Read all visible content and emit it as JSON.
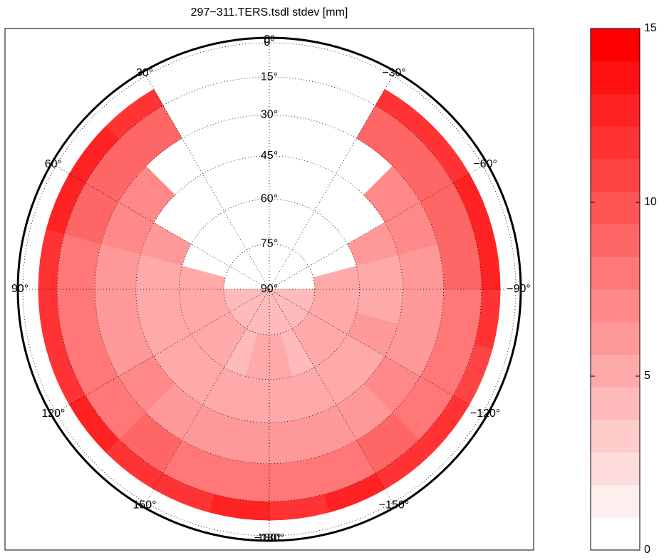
{
  "chart_data": {
    "type": "polar-heatmap",
    "title": "297−311.TERS.tsdl  stdev [mm]",
    "azimuth_edges": [
      -180,
      -165,
      -150,
      -135,
      -120,
      -105,
      -90,
      -75,
      -60,
      -45,
      -30,
      -15,
      0,
      15,
      30,
      45,
      60,
      75,
      90,
      105,
      120,
      135,
      150,
      165,
      180
    ],
    "elevation_edges": [
      7,
      15,
      30,
      45,
      60,
      75,
      90
    ],
    "values": [
      [
        12,
        13,
        12,
        12,
        11,
        12,
        13,
        13,
        12,
        12,
        null,
        null,
        null,
        null,
        12,
        13,
        13,
        12,
        12,
        12,
        13,
        12,
        12,
        13
      ],
      [
        8,
        8,
        9,
        8,
        8,
        8,
        9,
        9,
        9,
        9,
        null,
        null,
        null,
        null,
        9,
        9,
        9,
        8,
        8,
        8,
        8,
        9,
        8,
        8
      ],
      [
        6,
        6,
        6,
        7,
        6,
        6,
        6,
        7,
        7,
        null,
        null,
        null,
        null,
        null,
        null,
        7,
        7,
        6,
        6,
        6,
        7,
        6,
        6,
        6
      ],
      [
        5,
        5,
        5,
        5,
        6,
        5,
        5,
        6,
        null,
        null,
        null,
        null,
        null,
        null,
        null,
        null,
        6,
        5,
        5,
        5,
        5,
        5,
        5,
        5
      ],
      [
        5,
        4,
        5,
        5,
        5,
        5,
        5,
        null,
        null,
        null,
        null,
        null,
        null,
        null,
        null,
        null,
        null,
        5,
        5,
        5,
        5,
        5,
        4,
        5
      ],
      [
        4,
        4,
        4,
        4,
        4,
        4,
        null,
        null,
        null,
        null,
        null,
        null,
        null,
        null,
        null,
        null,
        null,
        null,
        4,
        4,
        4,
        4,
        4,
        4
      ]
    ],
    "elevation_ticks": [
      {
        "value": 0,
        "label": "0°"
      },
      {
        "value": 15,
        "label": "15°"
      },
      {
        "value": 30,
        "label": "30°"
      },
      {
        "value": 45,
        "label": "45°"
      },
      {
        "value": 60,
        "label": "60°"
      },
      {
        "value": 75,
        "label": "75°"
      },
      {
        "value": 90,
        "label": "90°"
      }
    ],
    "azimuth_ticks": [
      {
        "value": 0,
        "label": "0°"
      },
      {
        "value": 30,
        "label": "30°"
      },
      {
        "value": 60,
        "label": "60°"
      },
      {
        "value": 90,
        "label": "90°"
      },
      {
        "value": 120,
        "label": "120°"
      },
      {
        "value": 150,
        "label": "150°"
      },
      {
        "value": 180,
        "label": "180°"
      },
      {
        "value": -180,
        "label": "−180°"
      },
      {
        "value": -150,
        "label": "−150°"
      },
      {
        "value": -120,
        "label": "−120°"
      },
      {
        "value": -90,
        "label": "−90°"
      },
      {
        "value": -60,
        "label": "−60°"
      },
      {
        "value": -30,
        "label": "−30°"
      }
    ],
    "colormap": [
      "#ffffff",
      "#ff0000"
    ],
    "levels": 16,
    "clim": [
      0,
      15
    ],
    "cticks": [
      0,
      5,
      10,
      15
    ]
  }
}
